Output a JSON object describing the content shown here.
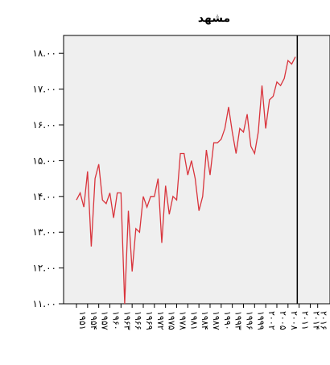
{
  "chart_data": {
    "type": "line",
    "title": "مشهد",
    "xlabel": "",
    "ylabel": "",
    "ylim": [
      11,
      18.5
    ],
    "grid": false,
    "y_ticks": [
      11,
      12,
      13,
      14,
      15,
      16,
      17,
      18
    ],
    "y_tick_labels": [
      "۱۱.۰۰",
      "۱۲.۰۰",
      "۱۳.۰۰",
      "۱۴.۰۰",
      "۱۵.۰۰",
      "۱۶.۰۰",
      "۱۷.۰۰",
      "۱۸.۰۰"
    ],
    "x_tick_labels": [
      "۱۹۵۱",
      "۱۹۵۴",
      "۱۹۵۷",
      "۱۹۶۰",
      "۱۹۶۳",
      "۱۹۶۶",
      "۱۹۶۹",
      "۱۹۷۲",
      "۱۹۷۵",
      "۱۹۷۸",
      "۱۹۸۱",
      "۱۹۸۴",
      "۱۹۸۷",
      "۱۹۹۰",
      "۱۹۹۳",
      "۱۹۹۶",
      "۱۹۹۹",
      "۲۰۰۲",
      "۲۰۰۵",
      "۲۰۰۸",
      "۲۰۱۱",
      "۲۰۱۴",
      "۲۰۱۶"
    ],
    "forecast_start": 2010.5,
    "colors": {
      "observed": "#d9343c",
      "forecast": "#3a55a8",
      "plot_background": "#efefef",
      "divider": "#000000"
    },
    "series": [
      {
        "key": "observed",
        "x": [
          1951,
          1952,
          1953,
          1954,
          1955,
          1956,
          1957,
          1958,
          1959,
          1960,
          1961,
          1962,
          1963,
          1964,
          1965,
          1966,
          1967,
          1968,
          1969,
          1970,
          1971,
          1972,
          1973,
          1974,
          1975,
          1976,
          1977,
          1978,
          1979,
          1980,
          1981,
          1982,
          1983,
          1984,
          1985,
          1986,
          1987,
          1988,
          1989,
          1990,
          1991,
          1992,
          1993,
          1994,
          1995,
          1996,
          1997,
          1998,
          1999,
          2000,
          2001,
          2002,
          2003,
          2004,
          2005,
          2006,
          2007,
          2008,
          2009,
          2010
        ],
        "values": [
          13.9,
          14.1,
          13.7,
          14.7,
          12.6,
          14.5,
          14.9,
          13.9,
          13.8,
          14.1,
          13.4,
          14.1,
          14.1,
          11.0,
          13.6,
          11.9,
          13.1,
          13.0,
          14.0,
          13.7,
          14.0,
          14.0,
          14.5,
          12.7,
          14.3,
          13.5,
          14.0,
          13.9,
          15.2,
          15.2,
          14.6,
          15.0,
          14.5,
          13.6,
          14.0,
          15.3,
          14.6,
          15.5,
          15.5,
          15.6,
          15.9,
          16.5,
          15.8,
          15.2,
          15.9,
          15.8,
          16.3,
          15.4,
          15.2,
          15.8,
          17.1,
          15.9,
          16.7,
          16.8,
          17.2,
          17.1,
          17.3,
          17.8,
          17.7,
          17.9
        ],
        "split_after": 2010
      }
    ]
  }
}
